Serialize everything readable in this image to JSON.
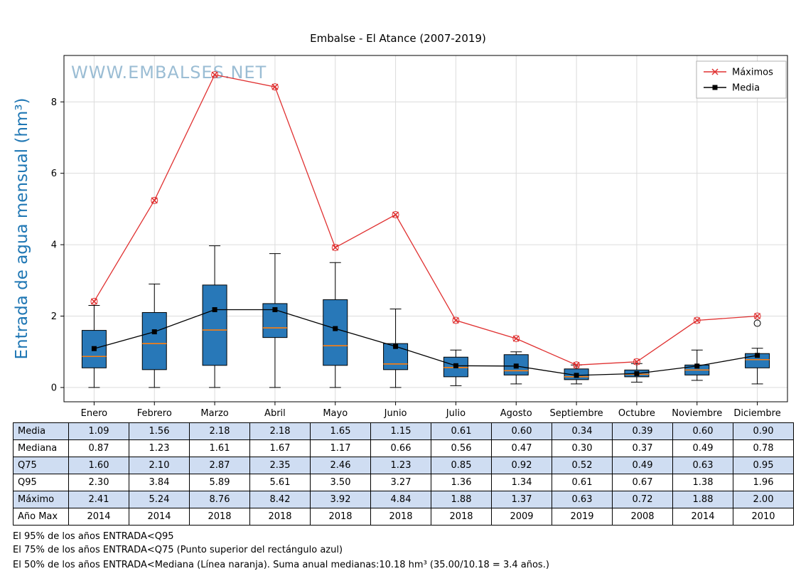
{
  "title": "Embalse - El Atance (2007-2019)",
  "watermark": "WWW.EMBALSES.NET",
  "ylabel": "Entrada de agua mensual (hm³)",
  "legend": {
    "maximos_label": "Máximos",
    "media_label": "Media"
  },
  "footer": {
    "line1": "El 95% de los años ENTRADA<Q95",
    "line2": "El 75% de los años ENTRADA<Q75 (Punto superior del rectángulo azul)",
    "line3": "El 50% de los años ENTRADA<Mediana (Línea naranja). Suma anual medianas:10.18 hm³ (35.00/10.18 = 3.4 años.)"
  },
  "colors": {
    "box_fill": "#2878b8",
    "median_line": "#ff7f0e",
    "maximos_line": "#e03131",
    "media_line": "#000000",
    "grid": "#dcdcdc",
    "watermark": "#9bbdd4",
    "ylabel_blue": "#1f77b4",
    "table_row_blue": "#cfddf2"
  },
  "chart_data": {
    "type": "boxplot+line",
    "title": "Embalse - El Atance (2007-2019)",
    "ylabel": "Entrada de agua mensual (hm³)",
    "categories": [
      "Enero",
      "Febrero",
      "Marzo",
      "Abril",
      "Mayo",
      "Junio",
      "Julio",
      "Agosto",
      "Septiembre",
      "Octubre",
      "Noviembre",
      "Diciembre"
    ],
    "ylim": [
      -0.4,
      9.3
    ],
    "yticks": [
      0,
      2,
      4,
      6,
      8
    ],
    "grid": true,
    "legend_position": "top-right",
    "series": [
      {
        "name": "Máximos",
        "type": "line",
        "marker": "x-circle",
        "values": [
          2.41,
          5.24,
          8.76,
          8.42,
          3.92,
          4.84,
          1.88,
          1.37,
          0.63,
          0.72,
          1.88,
          2.0
        ]
      },
      {
        "name": "Media",
        "type": "line",
        "marker": "square",
        "values": [
          1.09,
          1.56,
          2.18,
          2.18,
          1.65,
          1.15,
          0.61,
          0.6,
          0.34,
          0.39,
          0.6,
          0.9
        ]
      }
    ],
    "box": {
      "whisker_low": [
        0.0,
        0.0,
        0.0,
        0.0,
        0.0,
        0.0,
        0.05,
        0.1,
        0.1,
        0.15,
        0.2,
        0.1
      ],
      "q1": [
        0.55,
        0.5,
        0.62,
        1.4,
        0.62,
        0.5,
        0.3,
        0.35,
        0.22,
        0.3,
        0.35,
        0.55
      ],
      "median": [
        0.87,
        1.23,
        1.61,
        1.67,
        1.17,
        0.66,
        0.56,
        0.47,
        0.3,
        0.37,
        0.49,
        0.78
      ],
      "q3": [
        1.6,
        2.1,
        2.87,
        2.35,
        2.46,
        1.23,
        0.85,
        0.92,
        0.52,
        0.49,
        0.63,
        0.95
      ],
      "whisker_high": [
        2.3,
        2.9,
        3.97,
        3.75,
        3.5,
        2.2,
        1.05,
        1.0,
        0.63,
        0.67,
        1.05,
        1.1
      ],
      "outliers": [
        {
          "category": "Diciembre",
          "index": 11,
          "value": 1.8
        }
      ]
    },
    "table": {
      "row_labels": [
        "Media",
        "Mediana",
        "Q75",
        "Q95",
        "Máximo",
        "Año Max"
      ],
      "rows": [
        [
          "1.09",
          "1.56",
          "2.18",
          "2.18",
          "1.65",
          "1.15",
          "0.61",
          "0.60",
          "0.34",
          "0.39",
          "0.60",
          "0.90"
        ],
        [
          "0.87",
          "1.23",
          "1.61",
          "1.67",
          "1.17",
          "0.66",
          "0.56",
          "0.47",
          "0.30",
          "0.37",
          "0.49",
          "0.78"
        ],
        [
          "1.60",
          "2.10",
          "2.87",
          "2.35",
          "2.46",
          "1.23",
          "0.85",
          "0.92",
          "0.52",
          "0.49",
          "0.63",
          "0.95"
        ],
        [
          "2.30",
          "3.84",
          "5.89",
          "5.61",
          "3.50",
          "3.27",
          "1.36",
          "1.34",
          "0.61",
          "0.67",
          "1.38",
          "1.96"
        ],
        [
          "2.41",
          "5.24",
          "8.76",
          "8.42",
          "3.92",
          "4.84",
          "1.88",
          "1.37",
          "0.63",
          "0.72",
          "1.88",
          "2.00"
        ],
        [
          "2014",
          "2014",
          "2018",
          "2018",
          "2018",
          "2018",
          "2018",
          "2009",
          "2019",
          "2008",
          "2014",
          "2010"
        ]
      ]
    }
  }
}
